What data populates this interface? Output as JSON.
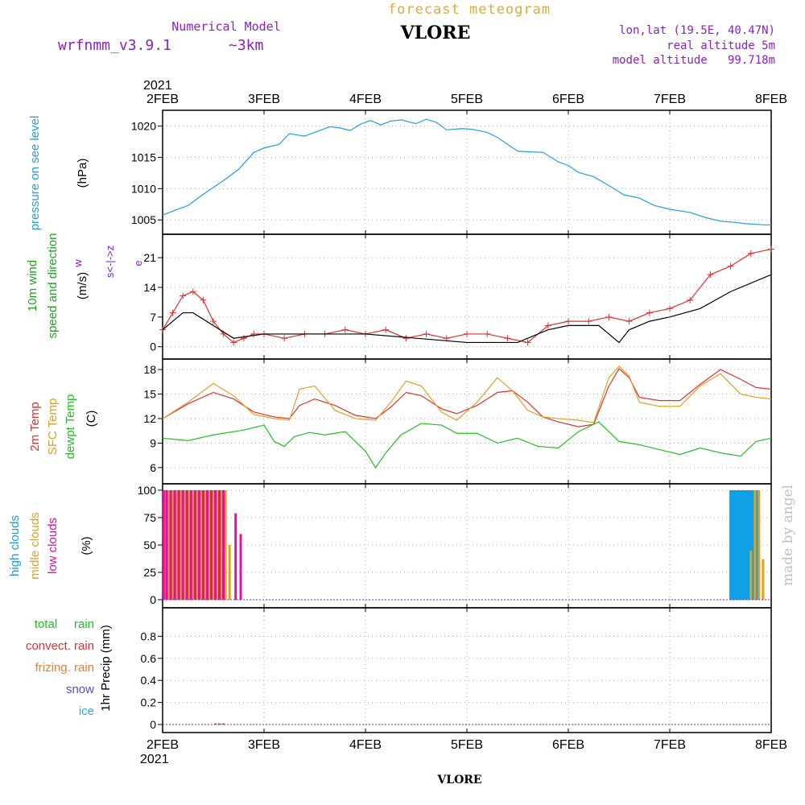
{
  "header": {
    "subtitle": "forecast meteogram",
    "station": "VLORE",
    "model_label": "Numerical Model",
    "model_name": "wrfnmm_v3.9.1",
    "resolution": "~3km",
    "coords": "lon,lat (19.5E, 40.47N)",
    "real_altitude": "real altitude 5m",
    "model_altitude": "model altitude   99.718m",
    "credit": "made by angel",
    "footer_station": "VLORE"
  },
  "colors": {
    "pressure": "#1fa0e0",
    "wind_label": "#1aa81a",
    "direction_key": "#8a20c8",
    "temp2m": "#e03030",
    "sfc_temp": "#e0a020",
    "dewpt": "#20c020",
    "high_clouds": "#10a0e8",
    "middle_clouds": "#e0a020",
    "low_clouds": "#e010a0",
    "title_orange": "#e0a840",
    "purple": "#8a20c8",
    "total_rain": "#20c020",
    "convect_rain": "#e03030",
    "frizing_rain": "#e08030",
    "snow": "#5050c0",
    "ice": "#20b0d0"
  },
  "chart_data": [
    {
      "type": "line",
      "id": "pressure",
      "title": "",
      "ylabel_lines": [
        "pressure on see level",
        "(hPa)"
      ],
      "x_ticks": [
        "2FEB",
        "3FEB",
        "4FEB",
        "5FEB",
        "6FEB",
        "7FEB",
        "8FEB"
      ],
      "x_year": "2021",
      "ylim": [
        1004,
        1021.5
      ],
      "y_ticks": [
        "1005",
        "1010",
        "1015",
        "1020"
      ],
      "grid": true,
      "series": [
        {
          "x": [
            0,
            0.1,
            0.25,
            0.4,
            0.5,
            0.6,
            0.75,
            0.9,
            1.0,
            1.15,
            1.25,
            1.4,
            1.55,
            1.65,
            1.75,
            1.85,
            1.95,
            2.05,
            2.15,
            2.25,
            2.35,
            2.5,
            2.6,
            2.7,
            2.8,
            2.95,
            3.05,
            3.2,
            3.3,
            3.4,
            3.5,
            3.6,
            3.75,
            3.9,
            4.0,
            4.1,
            4.25,
            4.4,
            4.55,
            4.7,
            4.85,
            5.0,
            5.2,
            5.35,
            5.5,
            5.65,
            5.75,
            5.85,
            5.95,
            6.0
          ],
          "values": [
            1005.8,
            1006.4,
            1007.3,
            1009.1,
            1010.2,
            1011.3,
            1013.1,
            1015.8,
            1016.5,
            1017.1,
            1018.8,
            1018.4,
            1019.3,
            1019.9,
            1019.7,
            1019.3,
            1020.3,
            1020.9,
            1020.2,
            1020.8,
            1021.0,
            1020.4,
            1021.1,
            1020.6,
            1019.4,
            1019.6,
            1019.5,
            1019.0,
            1018.2,
            1017.1,
            1016.0,
            1015.9,
            1015.8,
            1014.3,
            1013.7,
            1012.6,
            1011.9,
            1010.5,
            1009.0,
            1008.5,
            1007.3,
            1006.7,
            1006.2,
            1005.4,
            1004.8,
            1004.6,
            1004.4,
            1004.3,
            1004.2,
            1004.2
          ]
        }
      ]
    },
    {
      "type": "line",
      "id": "wind",
      "title": "",
      "ylabel_lines": [
        "10m wind",
        "speed and direction",
        "(m/s)"
      ],
      "direction_key": [
        "w",
        "s<-|->z",
        "e"
      ],
      "ylim": [
        -1,
        25
      ],
      "y_ticks": [
        "0",
        "7",
        "14",
        "21"
      ],
      "grid": true,
      "series": [
        {
          "name": "10m wind speed",
          "color": "#e03030",
          "x": [
            0,
            0.1,
            0.2,
            0.3,
            0.4,
            0.5,
            0.6,
            0.7,
            0.8,
            0.9,
            1.0,
            1.2,
            1.4,
            1.6,
            1.8,
            2.0,
            2.2,
            2.4,
            2.6,
            2.8,
            3.0,
            3.2,
            3.4,
            3.6,
            3.8,
            4.0,
            4.2,
            4.4,
            4.6,
            4.8,
            5.0,
            5.2,
            5.4,
            5.6,
            5.8,
            6.0
          ],
          "values": [
            4,
            8,
            12,
            13,
            11,
            6,
            3,
            1,
            2,
            3,
            3,
            2,
            3,
            3,
            4,
            3,
            4,
            2,
            3,
            2,
            3,
            3,
            2,
            1,
            5,
            6,
            6,
            7,
            6,
            8,
            9,
            11,
            17,
            19,
            22,
            23
          ]
        },
        {
          "name": "gust",
          "color": "#000000",
          "x": [
            0,
            0.2,
            0.3,
            0.5,
            0.7,
            1.0,
            2.0,
            3.0,
            3.5,
            3.8,
            4.0,
            4.3,
            4.4,
            4.5,
            4.6,
            4.8,
            5.0,
            5.3,
            5.6,
            6.0
          ],
          "values": [
            4,
            8,
            8,
            5,
            2,
            3,
            3,
            1,
            1,
            4,
            5,
            5,
            3,
            1,
            4,
            6,
            7,
            9,
            13,
            17
          ]
        }
      ]
    },
    {
      "type": "line",
      "id": "temperature",
      "title": "",
      "ylabel_lines": [
        "2m Temp",
        "SFC Temp",
        "dewpt Temp",
        "(C)"
      ],
      "ylim": [
        5,
        18.5
      ],
      "y_ticks": [
        "6",
        "9",
        "12",
        "15",
        "18"
      ],
      "grid": true,
      "series": [
        {
          "name": "2m Temp",
          "color": "#e03030",
          "x": [
            0,
            0.25,
            0.5,
            0.7,
            0.9,
            1.1,
            1.25,
            1.35,
            1.5,
            1.7,
            1.9,
            2.1,
            2.25,
            2.4,
            2.55,
            2.75,
            2.9,
            3.1,
            3.3,
            3.45,
            3.6,
            3.75,
            3.9,
            4.1,
            4.25,
            4.4,
            4.5,
            4.6,
            4.7,
            4.9,
            5.1,
            5.3,
            5.5,
            5.7,
            5.85,
            6.0
          ],
          "values": [
            12,
            13.8,
            15.2,
            14.4,
            12.8,
            12.2,
            12.0,
            13.6,
            14.4,
            13.6,
            12.4,
            12.0,
            13.4,
            15.2,
            14.8,
            13.2,
            12.6,
            13.6,
            15.2,
            15.4,
            14.0,
            12.2,
            11.6,
            11.0,
            11.3,
            16.0,
            18.1,
            17.0,
            14.6,
            14.2,
            14.2,
            16.2,
            18.0,
            16.8,
            15.8,
            15.6
          ]
        },
        {
          "name": "SFC Temp",
          "color": "#e0a020",
          "x": [
            0,
            0.25,
            0.5,
            0.7,
            0.9,
            1.1,
            1.25,
            1.35,
            1.5,
            1.7,
            1.9,
            2.1,
            2.25,
            2.4,
            2.55,
            2.75,
            2.9,
            3.1,
            3.3,
            3.45,
            3.6,
            3.75,
            3.9,
            4.1,
            4.25,
            4.4,
            4.5,
            4.6,
            4.7,
            4.9,
            5.1,
            5.3,
            5.5,
            5.7,
            5.85,
            6.0
          ],
          "values": [
            12,
            14.0,
            16.3,
            14.8,
            12.5,
            12.0,
            11.8,
            15.6,
            16.0,
            13.0,
            12.0,
            11.8,
            14.0,
            16.6,
            16.0,
            12.8,
            11.8,
            14.0,
            17.0,
            15.4,
            13.0,
            12.2,
            12.0,
            11.8,
            11.5,
            17.0,
            18.4,
            17.2,
            14.0,
            13.5,
            13.5,
            16.0,
            17.5,
            15.0,
            14.6,
            14.4
          ]
        },
        {
          "name": "dewpt Temp",
          "color": "#20c020",
          "x": [
            0,
            0.25,
            0.5,
            0.8,
            1.0,
            1.1,
            1.2,
            1.3,
            1.45,
            1.6,
            1.8,
            2.0,
            2.1,
            2.2,
            2.35,
            2.55,
            2.75,
            2.9,
            3.1,
            3.3,
            3.5,
            3.7,
            3.9,
            4.1,
            4.3,
            4.5,
            4.7,
            4.9,
            5.1,
            5.3,
            5.5,
            5.7,
            5.85,
            6.0
          ],
          "values": [
            9.6,
            9.3,
            10.0,
            10.6,
            11.2,
            9.2,
            8.6,
            9.8,
            10.3,
            10.0,
            10.4,
            8.0,
            6.0,
            7.8,
            10.0,
            11.4,
            11.2,
            10.2,
            10.2,
            9.0,
            9.6,
            8.6,
            8.4,
            10.4,
            11.6,
            9.2,
            8.8,
            8.2,
            7.6,
            8.4,
            7.8,
            7.4,
            9.2,
            9.6
          ]
        }
      ]
    },
    {
      "type": "bar",
      "id": "clouds",
      "title": "",
      "ylabel_lines": [
        "high clouds",
        "midle clouds",
        "low clouds",
        "(%)"
      ],
      "ylim": [
        0,
        100
      ],
      "y_ticks": [
        "0",
        "25",
        "50",
        "75",
        "100"
      ],
      "grid": true,
      "series": [
        {
          "name": "high clouds",
          "color": "#10a0e8",
          "x": [
            0.2,
            0.25,
            0.3,
            5.6,
            5.62,
            5.64,
            5.66,
            5.68,
            5.7,
            5.72,
            5.74,
            5.76,
            5.78,
            5.8,
            5.82,
            5.84,
            5.86
          ],
          "values": [
            100,
            100,
            100,
            100,
            100,
            100,
            100,
            100,
            100,
            100,
            100,
            100,
            100,
            100,
            100,
            100,
            100
          ]
        },
        {
          "name": "midle clouds",
          "color": "#e0a020",
          "x": [
            0.02,
            0.06,
            0.1,
            0.14,
            0.18,
            0.22,
            0.26,
            0.3,
            0.34,
            0.38,
            0.42,
            0.46,
            0.5,
            0.54,
            0.58,
            0.62,
            0.66,
            5.8,
            5.84,
            5.88,
            5.92
          ],
          "values": [
            100,
            100,
            100,
            100,
            100,
            100,
            100,
            100,
            100,
            100,
            100,
            100,
            100,
            100,
            100,
            100,
            50,
            45,
            100,
            100,
            37
          ]
        },
        {
          "name": "low clouds",
          "color": "#e010a0",
          "x": [
            0.01,
            0.04,
            0.08,
            0.12,
            0.16,
            0.2,
            0.24,
            0.28,
            0.32,
            0.36,
            0.4,
            0.44,
            0.48,
            0.52,
            0.56,
            0.6,
            0.72,
            0.77
          ],
          "values": [
            100,
            100,
            100,
            100,
            100,
            100,
            100,
            100,
            100,
            100,
            100,
            100,
            100,
            100,
            100,
            100,
            79,
            60
          ]
        }
      ]
    },
    {
      "type": "bar",
      "id": "precip",
      "title": "",
      "ylabel_lines": [
        "1hr Precip (mm)"
      ],
      "legend": [
        "total     rain",
        "convect. rain",
        "frizing. rain",
        "snow",
        "ice"
      ],
      "ylim": [
        0,
        1
      ],
      "y_ticks": [
        "0",
        "0.2",
        "0.4",
        "0.6",
        "0.8"
      ],
      "grid": true,
      "series": [
        {
          "name": "total rain",
          "color": "#e03030",
          "x": [
            0.52,
            0.56,
            0.6
          ],
          "values": [
            0.01,
            0.01,
            0.01
          ]
        }
      ]
    }
  ]
}
